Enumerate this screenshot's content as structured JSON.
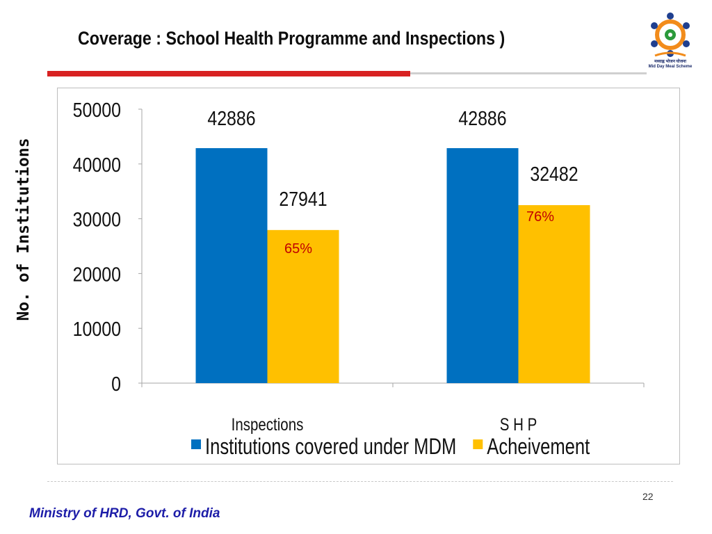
{
  "slide": {
    "title": "Coverage : School Health Programme and Inspections )",
    "page_number": "22",
    "footer": "Ministry of HRD, Govt. of India",
    "logo_caption": "Mid Day Meal Scheme",
    "logo_caption_hindi": "मध्याह्न भोजन योजना"
  },
  "chart_data": {
    "type": "bar",
    "ylabel": "No. of Institutions",
    "ylim": [
      0,
      50000
    ],
    "yticks": [
      0,
      10000,
      20000,
      30000,
      40000,
      50000
    ],
    "categories": [
      "Inspections",
      "S H P"
    ],
    "series": [
      {
        "name": "Institutions covered under MDM",
        "color": "#0070c0",
        "values": [
          42886,
          42886
        ]
      },
      {
        "name": "Acheivement",
        "color": "#ffc000",
        "values": [
          27941,
          32482
        ]
      }
    ],
    "annotations": [
      "65%",
      "76%"
    ],
    "legend": "bottom",
    "grid": false
  }
}
